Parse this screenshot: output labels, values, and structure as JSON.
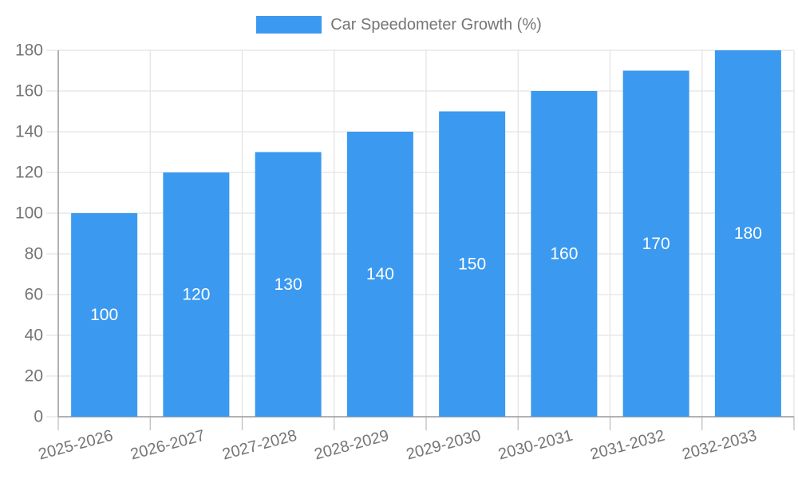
{
  "chart_data": {
    "type": "bar",
    "title": "Car Speedometer Growth (%)",
    "series_name": "Car Speedometer Growth (%)",
    "categories": [
      "2025-2026",
      "2026-2027",
      "2027-2028",
      "2028-2029",
      "2029-2030",
      "2030-2031",
      "2031-2032",
      "2032-2033"
    ],
    "values": [
      100,
      120,
      130,
      140,
      150,
      160,
      170,
      180
    ],
    "data_labels": [
      "100",
      "120",
      "130",
      "140",
      "150",
      "160",
      "170",
      "180"
    ],
    "xlabel": "",
    "ylabel": "",
    "ylim": [
      0,
      180
    ],
    "yticks": [
      0,
      20,
      40,
      60,
      80,
      100,
      120,
      140,
      160,
      180
    ],
    "grid": true,
    "legend_position": "top",
    "x_label_rotation_deg": -15,
    "colors": {
      "bar": "#3b99f0",
      "axis_label": "#757575",
      "gridline": "#e4e4e4",
      "axis_line": "#9b9b9b",
      "tick": "#c0c0c0",
      "data_label": "#ffffff",
      "background": "#ffffff"
    }
  }
}
